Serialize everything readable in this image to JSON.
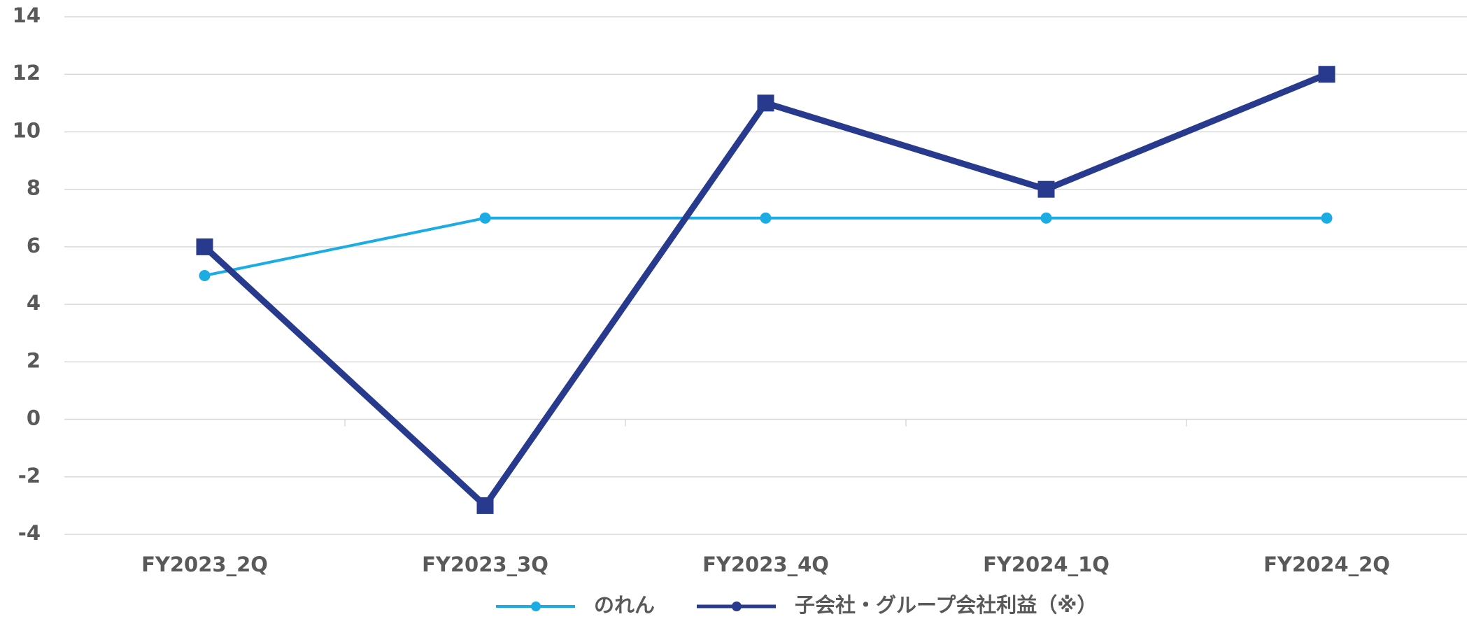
{
  "chart_data": {
    "type": "line",
    "categories": [
      "FY2023_2Q",
      "FY2023_3Q",
      "FY2023_4Q",
      "FY2024_1Q",
      "FY2024_2Q"
    ],
    "series": [
      {
        "name": "のれん",
        "color": "#1aace3",
        "values": [
          5,
          7,
          7,
          7,
          7
        ]
      },
      {
        "name": "子会社・グループ会社利益（※）",
        "color": "#283a8e",
        "values": [
          6,
          -3,
          11,
          8,
          12
        ]
      }
    ],
    "ylim": [
      -4,
      14
    ],
    "yticks": [
      -4,
      -2,
      0,
      2,
      4,
      6,
      8,
      10,
      12,
      14
    ],
    "grid": true,
    "legend": "bottom"
  }
}
